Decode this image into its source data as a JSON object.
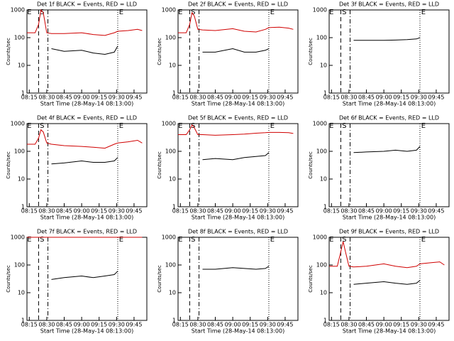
{
  "chart_data": [
    {
      "type": "line",
      "title": "Det 1f BLACK = Events, RED = LLD",
      "xlabel": "Start Time (28-May-14 08:13:00)",
      "ylabel": "Counts/sec",
      "log_y": true,
      "x": [
        "08:13",
        "08:20",
        "08:23",
        "08:25",
        "08:27",
        "08:30",
        "08:34",
        "08:45",
        "09:00",
        "09:10",
        "09:20",
        "09:28",
        "09:31",
        "09:40",
        "09:48",
        "09:52"
      ],
      "xlim": [
        "08:13",
        "09:56"
      ],
      "xticks": [
        "08:15",
        "08:30",
        "08:45",
        "09:00",
        "09:15",
        "09:30",
        "09:45"
      ],
      "ylim": [
        1,
        1000
      ],
      "yticks": [
        1,
        10,
        100,
        1000
      ],
      "vlines": [
        {
          "x": "08:23",
          "style": "dashed"
        },
        {
          "x": "08:31",
          "style": "dashdot"
        },
        {
          "x": "09:31",
          "style": "dotted"
        }
      ],
      "labels": [
        {
          "x": "08:15",
          "text": "E"
        },
        {
          "x": "08:26",
          "text": "S"
        },
        {
          "x": "09:34",
          "text": "E"
        }
      ],
      "series": [
        {
          "color": "#d00000",
          "values": [
            150,
            150,
            300,
            1000,
            800,
            150,
            140,
            140,
            150,
            130,
            120,
            150,
            170,
            180,
            200,
            180
          ]
        },
        {
          "color": "#000000",
          "values": [
            null,
            null,
            null,
            null,
            null,
            null,
            40,
            32,
            35,
            28,
            25,
            30,
            50,
            null,
            null,
            null
          ]
        }
      ]
    },
    {
      "type": "line",
      "title": "Det 2f BLACK = Events, RED = LLD",
      "xlabel": "Start Time (28-May-14 08:13:00)",
      "ylabel": "Counts/sec",
      "log_y": true,
      "x": [
        "08:13",
        "08:20",
        "08:23",
        "08:25",
        "08:27",
        "08:30",
        "08:34",
        "08:45",
        "09:00",
        "09:10",
        "09:20",
        "09:28",
        "09:31",
        "09:40",
        "09:48",
        "09:52"
      ],
      "xlim": [
        "08:13",
        "09:56"
      ],
      "xticks": [
        "08:15",
        "08:30",
        "08:45",
        "09:00",
        "09:15",
        "09:30",
        "09:45"
      ],
      "ylim": [
        1,
        1000
      ],
      "yticks": [
        1,
        10,
        100,
        1000
      ],
      "vlines": [
        {
          "x": "08:23",
          "style": "dashed"
        },
        {
          "x": "08:31",
          "style": "dashdot"
        },
        {
          "x": "09:31",
          "style": "dotted"
        }
      ],
      "labels": [
        {
          "x": "08:15",
          "text": "E"
        },
        {
          "x": "08:26",
          "text": "S"
        },
        {
          "x": "09:34",
          "text": "E"
        }
      ],
      "series": [
        {
          "color": "#d00000",
          "values": [
            150,
            150,
            300,
            800,
            600,
            200,
            190,
            180,
            210,
            170,
            160,
            200,
            230,
            240,
            220,
            200
          ]
        },
        {
          "color": "#000000",
          "values": [
            null,
            null,
            null,
            null,
            null,
            null,
            30,
            30,
            40,
            30,
            30,
            35,
            40,
            null,
            null,
            null
          ]
        }
      ]
    },
    {
      "type": "line",
      "title": "Det 3f BLACK = Events, RED = LLD",
      "xlabel": "Start Time (28-May-14 08:13:00)",
      "ylabel": "Counts/sec",
      "log_y": true,
      "x": [
        "08:13",
        "08:20",
        "08:23",
        "08:25",
        "08:27",
        "08:30",
        "08:34",
        "08:45",
        "09:00",
        "09:10",
        "09:20",
        "09:28",
        "09:31",
        "09:40",
        "09:48",
        "09:52"
      ],
      "xlim": [
        "08:13",
        "09:56"
      ],
      "xticks": [
        "08:15",
        "08:30",
        "08:45",
        "09:00",
        "09:15",
        "09:30",
        "09:45"
      ],
      "ylim": [
        1,
        1000
      ],
      "yticks": [
        1,
        10,
        100,
        1000
      ],
      "vlines": [
        {
          "x": "08:23",
          "style": "dashed"
        },
        {
          "x": "08:31",
          "style": "dashdot"
        },
        {
          "x": "09:31",
          "style": "dotted"
        }
      ],
      "labels": [
        {
          "x": "08:15",
          "text": "E"
        },
        {
          "x": "08:26",
          "text": "S"
        },
        {
          "x": "09:34",
          "text": "E"
        }
      ],
      "series": [
        {
          "color": "#000000",
          "values": [
            null,
            null,
            null,
            null,
            null,
            null,
            80,
            80,
            80,
            82,
            85,
            90,
            100,
            null,
            null,
            null
          ]
        }
      ]
    },
    {
      "type": "line",
      "title": "Det 4f BLACK = Events, RED = LLD",
      "xlabel": "Start Time (28-May-14 08:13:00)",
      "ylabel": "Counts/sec",
      "log_y": true,
      "x": [
        "08:13",
        "08:20",
        "08:23",
        "08:25",
        "08:27",
        "08:30",
        "08:34",
        "08:45",
        "09:00",
        "09:10",
        "09:20",
        "09:28",
        "09:31",
        "09:40",
        "09:48",
        "09:52"
      ],
      "xlim": [
        "08:13",
        "09:56"
      ],
      "xticks": [
        "08:15",
        "08:30",
        "08:45",
        "09:00",
        "09:15",
        "09:30",
        "09:45"
      ],
      "ylim": [
        1,
        1000
      ],
      "yticks": [
        1,
        10,
        100,
        1000
      ],
      "vlines": [
        {
          "x": "08:23",
          "style": "dashed"
        },
        {
          "x": "08:31",
          "style": "dashdot"
        },
        {
          "x": "09:31",
          "style": "dotted"
        }
      ],
      "labels": [
        {
          "x": "08:15",
          "text": "E"
        },
        {
          "x": "08:26",
          "text": "S"
        },
        {
          "x": "09:34",
          "text": "E"
        }
      ],
      "series": [
        {
          "color": "#d00000",
          "values": [
            180,
            180,
            300,
            600,
            500,
            200,
            180,
            160,
            150,
            140,
            130,
            180,
            200,
            220,
            250,
            200
          ]
        },
        {
          "color": "#000000",
          "values": [
            null,
            null,
            null,
            null,
            null,
            null,
            35,
            38,
            45,
            40,
            40,
            45,
            60,
            null,
            null,
            null
          ]
        }
      ]
    },
    {
      "type": "line",
      "title": "Det 5f BLACK = Events, RED = LLD",
      "xlabel": "Start Time (28-May-14 08:13:00)",
      "ylabel": "Counts/sec",
      "log_y": true,
      "x": [
        "08:13",
        "08:20",
        "08:23",
        "08:25",
        "08:27",
        "08:30",
        "08:34",
        "08:45",
        "09:00",
        "09:10",
        "09:20",
        "09:28",
        "09:31",
        "09:40",
        "09:48",
        "09:52"
      ],
      "xlim": [
        "08:13",
        "09:56"
      ],
      "xticks": [
        "08:15",
        "08:30",
        "08:45",
        "09:00",
        "09:15",
        "09:30",
        "09:45"
      ],
      "ylim": [
        1,
        1000
      ],
      "yticks": [
        1,
        10,
        100,
        1000
      ],
      "vlines": [
        {
          "x": "08:23",
          "style": "dashed"
        },
        {
          "x": "08:31",
          "style": "dashdot"
        },
        {
          "x": "09:31",
          "style": "dotted"
        }
      ],
      "labels": [
        {
          "x": "08:15",
          "text": "E"
        },
        {
          "x": "08:26",
          "text": "S"
        },
        {
          "x": "09:34",
          "text": "E"
        }
      ],
      "series": [
        {
          "color": "#d00000",
          "values": [
            400,
            400,
            600,
            900,
            700,
            400,
            400,
            380,
            400,
            420,
            450,
            470,
            480,
            480,
            470,
            440
          ]
        },
        {
          "color": "#000000",
          "values": [
            null,
            null,
            null,
            null,
            null,
            null,
            50,
            55,
            50,
            60,
            65,
            70,
            90,
            null,
            null,
            null
          ]
        }
      ]
    },
    {
      "type": "line",
      "title": "Det 6f BLACK = Events, RED = LLD",
      "xlabel": "Start Time (28-May-14 08:13:00)",
      "ylabel": "Counts/sec",
      "log_y": true,
      "x": [
        "08:13",
        "08:20",
        "08:23",
        "08:25",
        "08:27",
        "08:30",
        "08:34",
        "08:45",
        "09:00",
        "09:10",
        "09:20",
        "09:28",
        "09:31",
        "09:40",
        "09:48",
        "09:52"
      ],
      "xlim": [
        "08:13",
        "09:56"
      ],
      "xticks": [
        "08:15",
        "08:30",
        "08:45",
        "09:00",
        "09:15",
        "09:30",
        "09:45"
      ],
      "ylim": [
        1,
        1000
      ],
      "yticks": [
        1,
        10,
        100,
        1000
      ],
      "vlines": [
        {
          "x": "08:23",
          "style": "dashed"
        },
        {
          "x": "08:31",
          "style": "dashdot"
        },
        {
          "x": "09:31",
          "style": "dotted"
        }
      ],
      "labels": [
        {
          "x": "08:15",
          "text": "E"
        },
        {
          "x": "08:26",
          "text": "S"
        },
        {
          "x": "09:34",
          "text": "E"
        }
      ],
      "series": [
        {
          "color": "#000000",
          "values": [
            null,
            null,
            null,
            null,
            null,
            null,
            90,
            95,
            100,
            110,
            100,
            110,
            150,
            null,
            null,
            null
          ]
        }
      ]
    },
    {
      "type": "line",
      "title": "Det 7f BLACK = Events, RED = LLD",
      "xlabel": "Start Time (28-May-14 08:13:00)",
      "ylabel": "Counts/sec",
      "log_y": true,
      "x": [
        "08:13",
        "08:20",
        "08:23",
        "08:25",
        "08:27",
        "08:30",
        "08:34",
        "08:45",
        "09:00",
        "09:10",
        "09:20",
        "09:28",
        "09:31",
        "09:40",
        "09:48",
        "09:52"
      ],
      "xlim": [
        "08:13",
        "09:56"
      ],
      "xticks": [
        "08:15",
        "08:30",
        "08:45",
        "09:00",
        "09:15",
        "09:30",
        "09:45"
      ],
      "ylim": [
        1,
        1000
      ],
      "yticks": [
        1,
        10,
        100,
        1000
      ],
      "vlines": [
        {
          "x": "08:23",
          "style": "dashed"
        },
        {
          "x": "08:31",
          "style": "dashdot"
        },
        {
          "x": "09:31",
          "style": "dotted"
        }
      ],
      "labels": [
        {
          "x": "08:15",
          "text": "E"
        },
        {
          "x": "08:26",
          "text": "S"
        },
        {
          "x": "09:34",
          "text": "E"
        }
      ],
      "series": [
        {
          "color": "#d00000",
          "values": [
            1000,
            1000,
            1000,
            1000,
            1000,
            1000,
            1000,
            1000,
            1000,
            1000,
            1000,
            1000,
            1000,
            1000,
            1000,
            1000
          ]
        },
        {
          "color": "#000000",
          "values": [
            null,
            null,
            null,
            null,
            null,
            null,
            30,
            35,
            40,
            35,
            40,
            45,
            60,
            null,
            null,
            null
          ]
        }
      ]
    },
    {
      "type": "line",
      "title": "Det 8f BLACK = Events, RED = LLD",
      "xlabel": "Start Time (28-May-14 08:13:00)",
      "ylabel": "Counts/sec",
      "log_y": true,
      "x": [
        "08:13",
        "08:20",
        "08:23",
        "08:25",
        "08:27",
        "08:30",
        "08:34",
        "08:45",
        "09:00",
        "09:10",
        "09:20",
        "09:28",
        "09:31",
        "09:40",
        "09:48",
        "09:52"
      ],
      "xlim": [
        "08:13",
        "09:56"
      ],
      "xticks": [
        "08:15",
        "08:30",
        "08:45",
        "09:00",
        "09:15",
        "09:30",
        "09:45"
      ],
      "ylim": [
        1,
        1000
      ],
      "yticks": [
        1,
        10,
        100,
        1000
      ],
      "vlines": [
        {
          "x": "08:23",
          "style": "dashed"
        },
        {
          "x": "08:31",
          "style": "dashdot"
        },
        {
          "x": "09:31",
          "style": "dotted"
        }
      ],
      "labels": [
        {
          "x": "08:15",
          "text": "E"
        },
        {
          "x": "08:26",
          "text": "S"
        },
        {
          "x": "09:34",
          "text": "E"
        }
      ],
      "series": [
        {
          "color": "#000000",
          "values": [
            null,
            null,
            null,
            null,
            null,
            null,
            70,
            70,
            80,
            75,
            70,
            75,
            90,
            null,
            null,
            null
          ]
        }
      ]
    },
    {
      "type": "line",
      "title": "Det 9f BLACK = Events, RED = LLD",
      "xlabel": "Start Time (28-May-14 08:13:00)",
      "ylabel": "Counts/sec",
      "log_y": true,
      "x": [
        "08:13",
        "08:20",
        "08:23",
        "08:25",
        "08:27",
        "08:30",
        "08:34",
        "08:45",
        "09:00",
        "09:10",
        "09:20",
        "09:28",
        "09:31",
        "09:40",
        "09:48",
        "09:52"
      ],
      "xlim": [
        "08:13",
        "09:56"
      ],
      "xticks": [
        "08:15",
        "08:30",
        "08:45",
        "09:00",
        "09:15",
        "09:30",
        "09:45"
      ],
      "ylim": [
        1,
        1000
      ],
      "yticks": [
        1,
        10,
        100,
        1000
      ],
      "vlines": [
        {
          "x": "08:23",
          "style": "dashed"
        },
        {
          "x": "08:31",
          "style": "dashdot"
        },
        {
          "x": "09:31",
          "style": "dotted"
        }
      ],
      "labels": [
        {
          "x": "08:15",
          "text": "E"
        },
        {
          "x": "08:26",
          "text": "S"
        },
        {
          "x": "09:34",
          "text": "E"
        }
      ],
      "series": [
        {
          "color": "#d00000",
          "values": [
            90,
            90,
            300,
            700,
            300,
            90,
            85,
            90,
            110,
            90,
            80,
            90,
            110,
            120,
            130,
            100
          ]
        },
        {
          "color": "#000000",
          "values": [
            null,
            null,
            null,
            null,
            null,
            null,
            20,
            22,
            25,
            22,
            20,
            22,
            28,
            null,
            null,
            null
          ]
        }
      ]
    }
  ]
}
